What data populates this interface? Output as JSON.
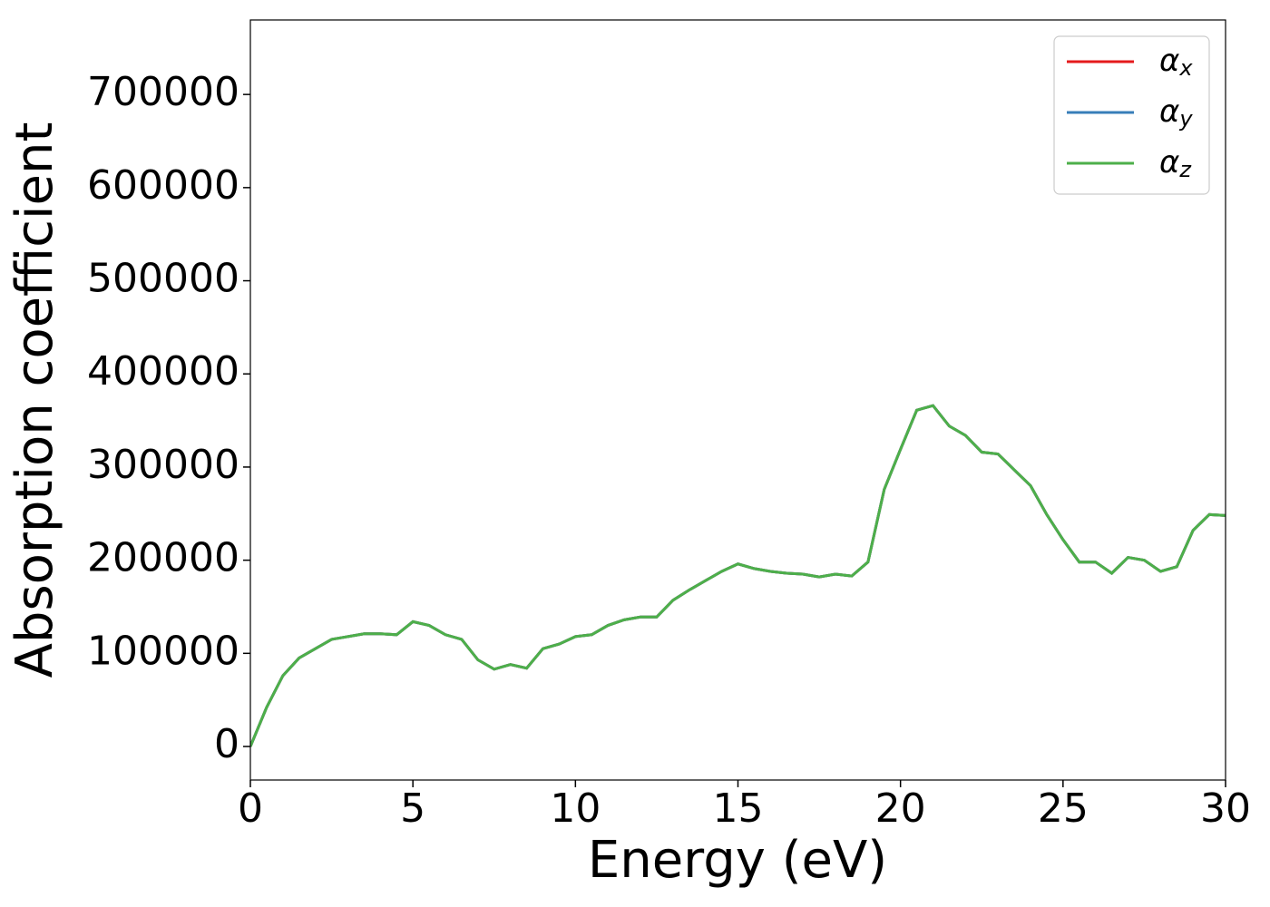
{
  "chart_data": {
    "type": "line",
    "xlabel": "Energy (eV)",
    "ylabel": "Absorption coefficient",
    "x": [
      0,
      0.5,
      1,
      1.5,
      2,
      2.5,
      3,
      3.5,
      4,
      4.5,
      5,
      5.5,
      6,
      6.5,
      7,
      7.5,
      8,
      8.5,
      9,
      9.5,
      10,
      10.5,
      11,
      11.5,
      12,
      12.5,
      13,
      13.5,
      14,
      14.5,
      15,
      15.5,
      16,
      16.5,
      17,
      17.5,
      18,
      18.5,
      19,
      19.5,
      20,
      20.5,
      21,
      21.5,
      22,
      22.5,
      23,
      23.5,
      24,
      24.5,
      25,
      25.5,
      26,
      26.5,
      27,
      27.5,
      28,
      28.5,
      29,
      29.5,
      30
    ],
    "series": [
      {
        "name": "αx",
        "color": "#e41a1c",
        "values": [
          0,
          42000,
          76000,
          95000,
          105000,
          115000,
          118000,
          121000,
          121000,
          120000,
          134000,
          130000,
          120000,
          115000,
          93000,
          83000,
          88000,
          84000,
          105000,
          110000,
          118000,
          120000,
          130000,
          136000,
          139000,
          139000,
          157000,
          168000,
          178000,
          188000,
          196000,
          191000,
          188000,
          186000,
          185000,
          182000,
          185000,
          183000,
          198000,
          276000,
          319000,
          361000,
          366000,
          344000,
          334000,
          316000,
          314000,
          297000,
          280000,
          249000,
          222000,
          198000,
          198000,
          186000,
          203000,
          200000,
          188000,
          193000,
          232000,
          249000,
          248000
        ]
      },
      {
        "name": "αy",
        "color": "#377eb8",
        "values": [
          0,
          42000,
          76000,
          95000,
          105000,
          115000,
          118000,
          121000,
          121000,
          120000,
          134000,
          130000,
          120000,
          115000,
          93000,
          83000,
          88000,
          84000,
          105000,
          110000,
          118000,
          120000,
          130000,
          136000,
          139000,
          139000,
          157000,
          168000,
          178000,
          188000,
          196000,
          191000,
          188000,
          186000,
          185000,
          182000,
          185000,
          183000,
          198000,
          276000,
          319000,
          361000,
          366000,
          344000,
          334000,
          316000,
          314000,
          297000,
          280000,
          249000,
          222000,
          198000,
          198000,
          186000,
          203000,
          200000,
          188000,
          193000,
          232000,
          249000,
          248000
        ]
      },
      {
        "name": "αz",
        "color": "#4daf4a",
        "values": [
          0,
          42000,
          76000,
          95000,
          105000,
          115000,
          118000,
          121000,
          121000,
          120000,
          134000,
          130000,
          120000,
          115000,
          93000,
          83000,
          88000,
          84000,
          105000,
          110000,
          118000,
          120000,
          130000,
          136000,
          139000,
          139000,
          157000,
          168000,
          178000,
          188000,
          196000,
          191000,
          188000,
          186000,
          185000,
          182000,
          185000,
          183000,
          198000,
          276000,
          319000,
          361000,
          366000,
          344000,
          334000,
          316000,
          314000,
          297000,
          280000,
          249000,
          222000,
          198000,
          198000,
          186000,
          203000,
          200000,
          188000,
          193000,
          232000,
          249000,
          248000
        ]
      }
    ],
    "xlim": [
      0,
      30
    ],
    "xticks": [
      0,
      5,
      10,
      15,
      20,
      25,
      30
    ],
    "ylim": [
      -36000,
      780000
    ],
    "yticks": [
      0,
      100000,
      200000,
      300000,
      400000,
      500000,
      600000,
      700000
    ],
    "legend": "upper right",
    "grid": false
  }
}
